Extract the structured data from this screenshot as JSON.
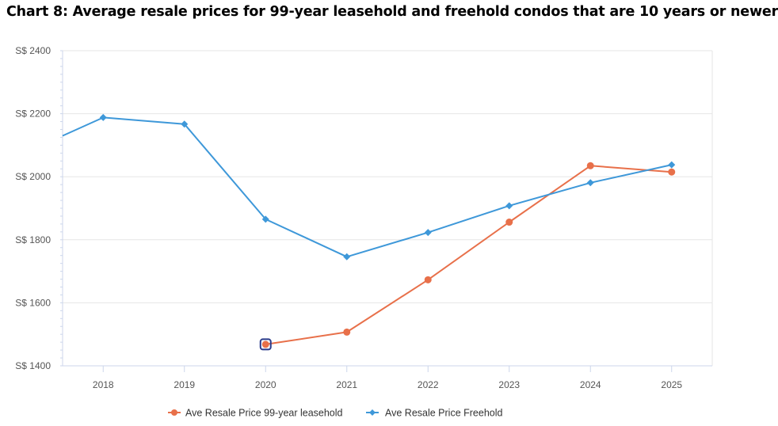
{
  "title": "Chart 8: Average resale prices for 99-year leasehold and freehold condos that are 10 years or newer",
  "chart_data": {
    "type": "line",
    "title": "Chart 8: Average resale prices for 99-year leasehold and freehold condos that are 10 years or newer",
    "xlabel": "",
    "ylabel": "",
    "categories": [
      "2018",
      "2019",
      "2020",
      "2021",
      "2022",
      "2023",
      "2024",
      "2025"
    ],
    "xlim": [
      2017.5,
      2025.5
    ],
    "ylim": [
      1400,
      2400
    ],
    "yticks": [
      1400,
      1600,
      1800,
      2000,
      2200,
      2400
    ],
    "ytick_labels": [
      "S$ 1400",
      "S$ 1600",
      "S$ 1800",
      "S$ 2000",
      "S$ 2200",
      "S$ 2400"
    ],
    "grid": true,
    "legend_position": "bottom-center",
    "series": [
      {
        "name": "Ave Resale Price 99-year leasehold",
        "color": "#e8704a",
        "marker": "circle",
        "points": [
          {
            "x": 2020,
            "y": 1468
          },
          {
            "x": 2021,
            "y": 1507
          },
          {
            "x": 2022,
            "y": 1673
          },
          {
            "x": 2023,
            "y": 1856
          },
          {
            "x": 2024,
            "y": 2035
          },
          {
            "x": 2025,
            "y": 2015
          }
        ],
        "highlighted_x": 2020
      },
      {
        "name": "Ave Resale Price Freehold",
        "color": "#3e98d9",
        "marker": "diamond",
        "points": [
          {
            "x": 2017.5,
            "y": 2130
          },
          {
            "x": 2018,
            "y": 2188
          },
          {
            "x": 2019,
            "y": 2167
          },
          {
            "x": 2020,
            "y": 1865
          },
          {
            "x": 2021,
            "y": 1746
          },
          {
            "x": 2022,
            "y": 1823
          },
          {
            "x": 2023,
            "y": 1908
          },
          {
            "x": 2024,
            "y": 1981
          },
          {
            "x": 2025,
            "y": 2038
          }
        ]
      }
    ]
  }
}
